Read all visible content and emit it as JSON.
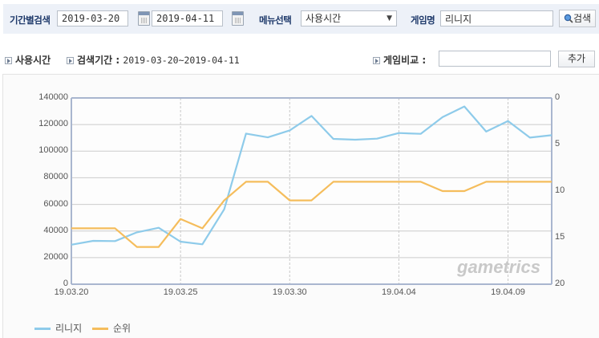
{
  "search": {
    "period_label": "기간별검색",
    "start_date": "2019-03-20",
    "end_date": "2019-04-11",
    "menu_label": "메뉴선택",
    "menu_selected": "사용시간",
    "game_label": "게임명",
    "game_value": "리니지",
    "search_button": "검색"
  },
  "info": {
    "metric": "사용시간",
    "period_label": "검색기간 :",
    "period_value": "2019-03-20~2019-04-11",
    "compare_label": "게임비교 :",
    "compare_value": "",
    "add_button": "추가"
  },
  "watermark": "gametrics",
  "colors": {
    "series_main": "#8ecbea",
    "series_rank": "#f5bd5c",
    "axis": "#a9b6cf",
    "grid": "#cccccc"
  },
  "chart_data": {
    "type": "line",
    "title": "",
    "xlabel": "",
    "ylabel": "",
    "x": [
      "19.03.20",
      "19.03.21",
      "19.03.22",
      "19.03.23",
      "19.03.24",
      "19.03.25",
      "19.03.26",
      "19.03.27",
      "19.03.28",
      "19.03.29",
      "19.03.30",
      "19.03.31",
      "19.04.01",
      "19.04.02",
      "19.04.03",
      "19.04.04",
      "19.04.05",
      "19.04.06",
      "19.04.07",
      "19.04.08",
      "19.04.09",
      "19.04.10",
      "19.04.11"
    ],
    "x_tick_labels": [
      "19.03.20",
      "19.03.25",
      "19.03.30",
      "19.04.04",
      "19.04.09"
    ],
    "x_tick_indices": [
      0,
      5,
      10,
      15,
      20
    ],
    "series": [
      {
        "name": "리니지",
        "axis": "left",
        "values": [
          29700,
          32600,
          32400,
          39000,
          42400,
          32000,
          30000,
          56300,
          113200,
          110400,
          115600,
          126500,
          109200,
          108600,
          109400,
          113600,
          113000,
          125600,
          133600,
          114700,
          122600,
          110200,
          112000
        ]
      },
      {
        "name": "순위",
        "axis": "right",
        "values": [
          14,
          14,
          14,
          16,
          16,
          13,
          14,
          11,
          9,
          9,
          11,
          11,
          9,
          9,
          9,
          9,
          9,
          10,
          10,
          9,
          9,
          9,
          9
        ]
      }
    ],
    "y_left": {
      "ylim": [
        0,
        140000
      ],
      "ticks": [
        "140000",
        "120000",
        "100000",
        "80000",
        "60000",
        "40000",
        "20000",
        "0"
      ]
    },
    "y_right": {
      "ylim": [
        0,
        20
      ],
      "inverted": true,
      "ticks": [
        "0",
        "5",
        "10",
        "15",
        "20"
      ]
    },
    "grid": true,
    "legend_position": "bottom-left"
  },
  "legend": [
    {
      "label": "리니지"
    },
    {
      "label": "순위"
    }
  ]
}
